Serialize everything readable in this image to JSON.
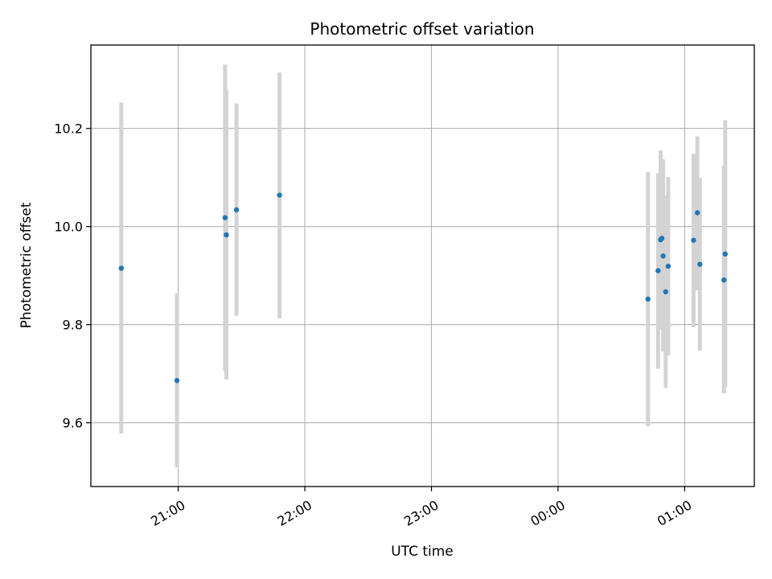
{
  "chart_data": {
    "type": "scatter",
    "title": "Photometric offset variation",
    "xlabel": "UTC time",
    "ylabel": "Photometric offset",
    "x_unit": "UTC hour of day (hours after 24 continue past midnight)",
    "xlim": [
      20.31,
      25.55
    ],
    "ylim": [
      9.47,
      10.37
    ],
    "x_ticks": [
      {
        "value": 21,
        "label": "21:00"
      },
      {
        "value": 22,
        "label": "22:00"
      },
      {
        "value": 23,
        "label": "23:00"
      },
      {
        "value": 24,
        "label": "00:00"
      },
      {
        "value": 25,
        "label": "01:00"
      }
    ],
    "y_ticks": [
      {
        "value": 9.6,
        "label": "9.6"
      },
      {
        "value": 9.8,
        "label": "9.8"
      },
      {
        "value": 10.0,
        "label": "10.0"
      },
      {
        "value": 10.2,
        "label": "10.2"
      }
    ],
    "grid": true,
    "colors": {
      "points": "#1f77b4",
      "errorbars": "#d3d3d3",
      "grid": "#b0b0b0"
    },
    "points": [
      {
        "x": 20.55,
        "y": 9.915,
        "ylo": 9.578,
        "yhi": 10.253
      },
      {
        "x": 20.99,
        "y": 9.686,
        "ylo": 9.509,
        "yhi": 9.864
      },
      {
        "x": 21.37,
        "y": 10.018,
        "ylo": 9.706,
        "yhi": 10.33
      },
      {
        "x": 21.38,
        "y": 9.983,
        "ylo": 9.688,
        "yhi": 10.278
      },
      {
        "x": 21.46,
        "y": 10.034,
        "ylo": 9.818,
        "yhi": 10.251
      },
      {
        "x": 21.8,
        "y": 10.064,
        "ylo": 9.813,
        "yhi": 10.314
      },
      {
        "x": 24.71,
        "y": 9.852,
        "ylo": 9.593,
        "yhi": 10.111
      },
      {
        "x": 24.79,
        "y": 9.91,
        "ylo": 9.71,
        "yhi": 10.108
      },
      {
        "x": 24.81,
        "y": 9.973,
        "ylo": 9.79,
        "yhi": 10.155
      },
      {
        "x": 24.82,
        "y": 9.976,
        "ylo": 9.84,
        "yhi": 10.11
      },
      {
        "x": 24.83,
        "y": 9.94,
        "ylo": 9.745,
        "yhi": 10.137
      },
      {
        "x": 24.85,
        "y": 9.867,
        "ylo": 9.671,
        "yhi": 10.063
      },
      {
        "x": 24.87,
        "y": 9.919,
        "ylo": 9.737,
        "yhi": 10.101
      },
      {
        "x": 25.07,
        "y": 9.972,
        "ylo": 9.795,
        "yhi": 10.148
      },
      {
        "x": 25.1,
        "y": 10.028,
        "ylo": 9.87,
        "yhi": 10.184
      },
      {
        "x": 25.12,
        "y": 9.923,
        "ylo": 9.747,
        "yhi": 10.099
      },
      {
        "x": 25.31,
        "y": 9.891,
        "ylo": 9.66,
        "yhi": 10.124
      },
      {
        "x": 25.32,
        "y": 9.944,
        "ylo": 9.672,
        "yhi": 10.217
      }
    ]
  }
}
